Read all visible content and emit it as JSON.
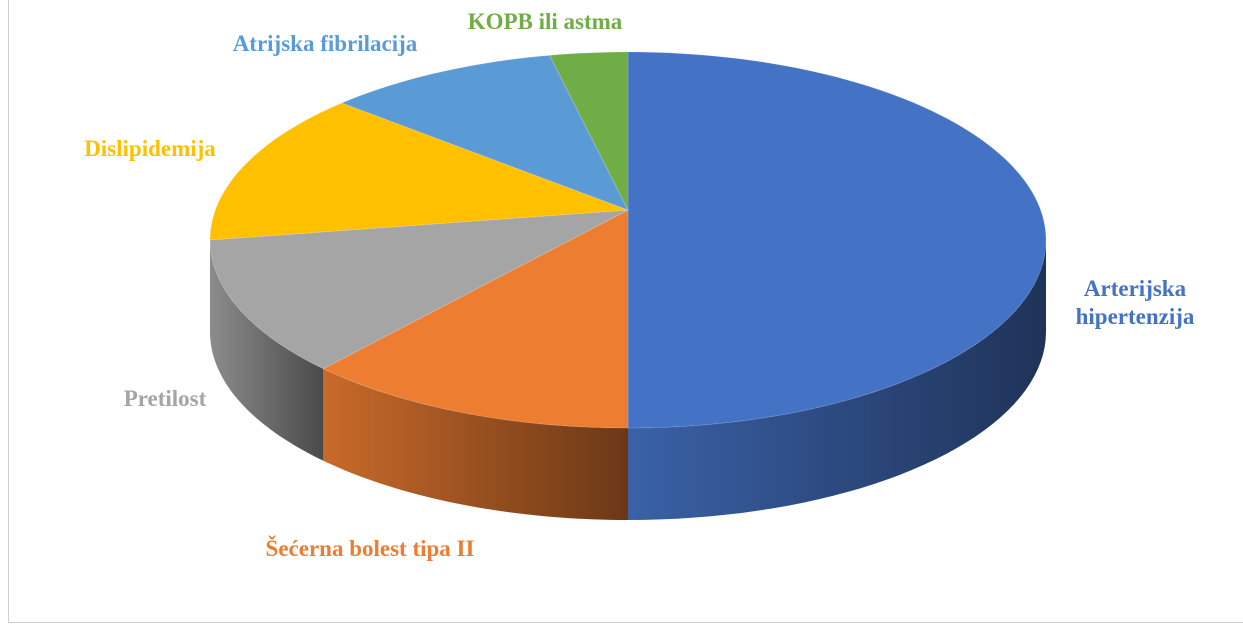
{
  "chart_data": {
    "type": "pie3d",
    "categories": [
      "Arterijska hipertenzija",
      "Šećerna bolest tipa II",
      "Pretilost",
      "Dislipidemija",
      "Atrijska fibrilacija",
      "KOPB ili astma"
    ],
    "values": [
      50,
      13,
      12,
      13,
      9,
      3
    ],
    "colors": [
      "#4472c4",
      "#ed7d31",
      "#a5a5a5",
      "#ffc000",
      "#5b9bd5",
      "#70ad47"
    ]
  }
}
